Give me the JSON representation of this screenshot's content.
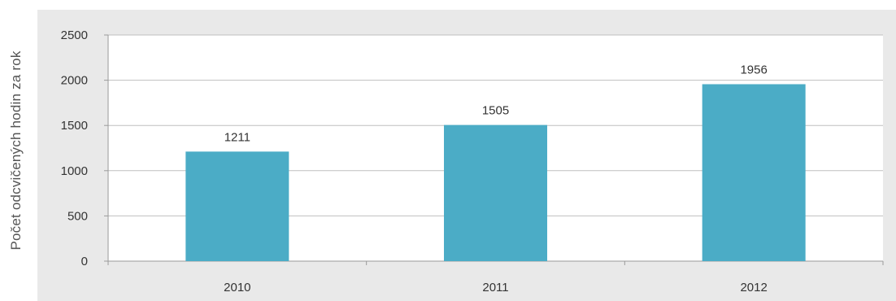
{
  "colors": {
    "bar": "#4bacc6",
    "grid": "#bfbfbf",
    "axis": "#9a9a9a",
    "text": "#333333",
    "frame": "#e9e9e9"
  },
  "chart_data": {
    "type": "bar",
    "categories": [
      "2010",
      "2011",
      "2012"
    ],
    "series": [
      {
        "values": [
          1211,
          1505,
          1956
        ],
        "data_labels": [
          "1211",
          "1505",
          "1956"
        ]
      }
    ],
    "title": "",
    "xlabel": "",
    "ylabel": "Počet odcvičených hodin za rok",
    "ylim": [
      0,
      2500
    ],
    "yticks": [
      0,
      500,
      1000,
      1500,
      2000,
      2500
    ],
    "ytick_labels": [
      "0",
      "500",
      "1000",
      "1500",
      "2000",
      "2500"
    ],
    "grid": true,
    "legend": "none"
  }
}
